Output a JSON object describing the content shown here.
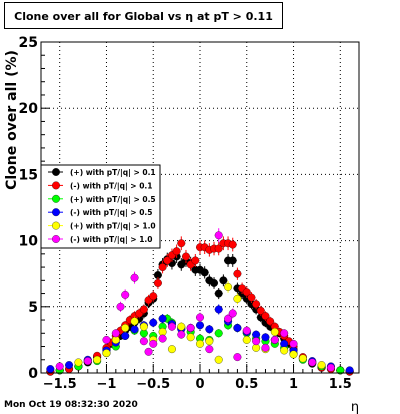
{
  "chart_data": {
    "type": "scatter",
    "title": "Clone  over all for Global vs   η at pT > 0.11",
    "xlabel": "η",
    "ylabel": "Clone  over all (%)",
    "xlim": [
      -1.7,
      1.7
    ],
    "ylim": [
      0,
      25
    ],
    "xticks": [
      -1.5,
      -1,
      -0.5,
      0,
      0.5,
      1,
      1.5
    ],
    "xtick_labels": [
      "−1.5",
      "−1",
      "−0.5",
      "0",
      "0.5",
      "1",
      "1.5"
    ],
    "yticks": [
      0,
      5,
      10,
      15,
      20,
      25
    ],
    "ytick_labels": [
      "0",
      "5",
      "10",
      "15",
      "20",
      "25"
    ],
    "grid": true,
    "legend_placement": "middle-left",
    "timestamp": "Mon Oct 19 08:32:30 2020",
    "series": [
      {
        "name": "(+) with pT/|q| > 0.1",
        "color": "#000000",
        "x": [
          -1.6,
          -1.5,
          -1.4,
          -1.3,
          -1.2,
          -1.1,
          -1.0,
          -0.95,
          -0.9,
          -0.85,
          -0.8,
          -0.75,
          -0.7,
          -0.65,
          -0.6,
          -0.55,
          -0.5,
          -0.45,
          -0.4,
          -0.35,
          -0.3,
          -0.25,
          -0.2,
          -0.15,
          -0.1,
          -0.05,
          0.0,
          0.05,
          0.1,
          0.15,
          0.2,
          0.25,
          0.3,
          0.35,
          0.4,
          0.45,
          0.5,
          0.55,
          0.6,
          0.65,
          0.7,
          0.75,
          0.8,
          0.85,
          0.9,
          0.95,
          1.0,
          1.1,
          1.2,
          1.3,
          1.4,
          1.5,
          1.6
        ],
        "y": [
          0.1,
          0.2,
          0.3,
          0.5,
          0.8,
          1.2,
          1.8,
          2.2,
          2.5,
          2.8,
          3.2,
          3.5,
          3.8,
          4.1,
          4.5,
          5.3,
          5.6,
          7.4,
          8.2,
          8.6,
          8.3,
          8.8,
          8.2,
          8.5,
          8.3,
          7.8,
          7.8,
          7.6,
          7.0,
          6.8,
          6.0,
          7.0,
          8.5,
          8.5,
          6.4,
          6.0,
          5.6,
          5.2,
          4.8,
          4.2,
          3.8,
          3.5,
          3.2,
          3.0,
          2.6,
          2.2,
          1.8,
          1.1,
          0.7,
          0.4,
          0.3,
          0.2,
          0.1
        ]
      },
      {
        "name": "(-) with pT/|q| > 0.1",
        "color": "#ff0000",
        "x": [
          -1.6,
          -1.5,
          -1.4,
          -1.3,
          -1.2,
          -1.1,
          -1.0,
          -0.95,
          -0.9,
          -0.85,
          -0.8,
          -0.75,
          -0.7,
          -0.65,
          -0.6,
          -0.55,
          -0.5,
          -0.45,
          -0.4,
          -0.35,
          -0.3,
          -0.25,
          -0.2,
          -0.15,
          -0.1,
          -0.05,
          0.0,
          0.05,
          0.1,
          0.15,
          0.2,
          0.25,
          0.3,
          0.35,
          0.4,
          0.45,
          0.5,
          0.55,
          0.6,
          0.65,
          0.7,
          0.75,
          0.8,
          0.85,
          0.9,
          0.95,
          1.0,
          1.1,
          1.2,
          1.3,
          1.4,
          1.5,
          1.6
        ],
        "y": [
          0.1,
          0.2,
          0.3,
          0.5,
          0.9,
          1.3,
          1.9,
          2.3,
          2.8,
          3.2,
          3.6,
          4.0,
          4.3,
          4.5,
          4.8,
          5.5,
          5.8,
          6.8,
          8.0,
          8.5,
          8.9,
          9.2,
          9.8,
          8.8,
          8.2,
          8.5,
          9.5,
          9.5,
          9.3,
          9.4,
          9.4,
          9.8,
          9.8,
          9.7,
          7.5,
          6.4,
          6.1,
          5.7,
          5.2,
          4.7,
          4.3,
          3.9,
          3.5,
          3.1,
          2.8,
          2.4,
          2.0,
          1.2,
          0.8,
          0.4,
          0.3,
          0.2,
          0.1
        ]
      },
      {
        "name": "(+) with pT/|q| > 0.5",
        "color": "#00ff00",
        "x": [
          -1.5,
          -1.3,
          -1.1,
          -1.0,
          -0.9,
          -0.8,
          -0.7,
          -0.6,
          -0.5,
          -0.4,
          -0.35,
          -0.3,
          -0.2,
          -0.1,
          0.0,
          0.1,
          0.2,
          0.3,
          0.4,
          0.5,
          0.6,
          0.7,
          0.8,
          0.9,
          1.0,
          1.1,
          1.3,
          1.5
        ],
        "y": [
          0.2,
          0.5,
          0.9,
          1.5,
          2.0,
          2.8,
          3.2,
          3.0,
          2.8,
          3.5,
          4.1,
          3.8,
          3.4,
          3.1,
          2.6,
          2.5,
          3.0,
          3.6,
          3.4,
          3.0,
          2.6,
          2.4,
          2.2,
          1.9,
          1.5,
          1.0,
          0.5,
          0.2
        ]
      },
      {
        "name": "(-) with pT/|q| > 0.5",
        "color": "#0000ff",
        "x": [
          -1.6,
          -1.4,
          -1.2,
          -1.0,
          -0.9,
          -0.8,
          -0.7,
          -0.6,
          -0.5,
          -0.4,
          -0.3,
          -0.2,
          -0.1,
          0.0,
          0.1,
          0.2,
          0.3,
          0.4,
          0.5,
          0.6,
          0.7,
          0.8,
          0.9,
          1.0,
          1.2,
          1.4,
          1.6
        ],
        "y": [
          0.3,
          0.6,
          1.0,
          1.7,
          2.3,
          2.8,
          3.3,
          3.6,
          3.8,
          4.1,
          3.7,
          3.3,
          3.4,
          3.6,
          3.3,
          4.8,
          3.9,
          3.4,
          3.1,
          2.9,
          2.7,
          2.5,
          2.2,
          1.7,
          0.9,
          0.5,
          0.2
        ]
      },
      {
        "name": "(+) with pT/|q| > 1.0",
        "color": "#ffff00",
        "x": [
          -1.3,
          -1.1,
          -1.0,
          -0.9,
          -0.8,
          -0.7,
          -0.6,
          -0.5,
          -0.4,
          -0.3,
          -0.2,
          -0.1,
          0.0,
          0.1,
          0.2,
          0.3,
          0.4,
          0.5,
          0.6,
          0.7,
          0.8,
          0.9,
          1.0,
          1.1,
          1.3
        ],
        "y": [
          0.8,
          1.0,
          1.5,
          2.5,
          3.4,
          3.9,
          3.5,
          2.5,
          3.1,
          1.8,
          3.5,
          2.7,
          2.2,
          2.4,
          1.0,
          6.5,
          5.6,
          2.5,
          1.9,
          1.8,
          3.1,
          1.7,
          1.4,
          1.1,
          0.6
        ]
      },
      {
        "name": "(-) with pT/|q| > 1.0",
        "color": "#ff00ff",
        "x": [
          -1.5,
          -1.2,
          -1.0,
          -0.9,
          -0.85,
          -0.8,
          -0.7,
          -0.6,
          -0.55,
          -0.5,
          -0.4,
          -0.3,
          -0.2,
          -0.1,
          0.0,
          0.1,
          0.2,
          0.3,
          0.35,
          0.4,
          0.5,
          0.6,
          0.7,
          0.8,
          0.9,
          1.0,
          1.2,
          1.4
        ],
        "y": [
          0.5,
          0.9,
          2.5,
          3.0,
          5.0,
          5.9,
          7.2,
          2.4,
          1.6,
          2.2,
          2.6,
          3.5,
          2.9,
          3.4,
          4.2,
          1.8,
          10.4,
          4.1,
          4.5,
          1.2,
          3.2,
          2.4,
          1.9,
          2.5,
          3.0,
          2.2,
          0.8,
          0.4
        ]
      }
    ]
  }
}
